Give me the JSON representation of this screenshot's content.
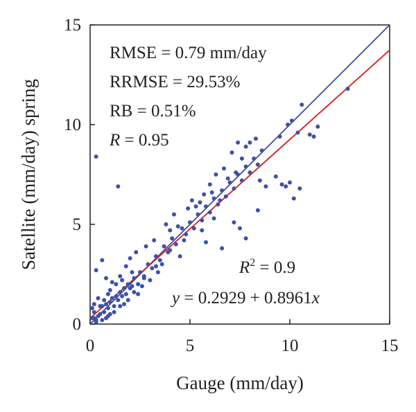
{
  "chart_data": {
    "type": "scatter",
    "xlabel": "Gauge (mm/day)",
    "ylabel": "Satellite (mm/day) spring",
    "xlim": [
      0,
      15
    ],
    "ylim": [
      0,
      15
    ],
    "xticks": [
      "0",
      "5",
      "10",
      "15"
    ],
    "yticks": [
      "0",
      "5",
      "10",
      "15"
    ],
    "stats": {
      "rmse": "RMSE = 0.79 mm/day",
      "rrmse": "RRMSE = 29.53%",
      "rb": "RB = 0.51%",
      "r_var": "R",
      "r_val": " = 0.95",
      "r2_var": "R",
      "r2_sup": "2",
      "r2_val": " = 0.9",
      "eq_y": "y",
      "eq_mid": " = 0.2929 + 0.8961",
      "eq_x": "x"
    },
    "fit_line": {
      "intercept": 0.2929,
      "slope": 0.8961,
      "color": "#d7191c"
    },
    "identity_line": {
      "intercept": 0,
      "slope": 1,
      "color": "#3a4a9f"
    },
    "point_color": "#3f51a6",
    "points": [
      [
        0.3,
        8.4
      ],
      [
        1.4,
        6.9
      ],
      [
        0.3,
        2.7
      ],
      [
        0.6,
        3.2
      ],
      [
        0.8,
        2.3
      ],
      [
        1.0,
        1.7
      ],
      [
        0.4,
        1.3
      ],
      [
        0.1,
        0.8
      ],
      [
        0.2,
        0.6
      ],
      [
        0.1,
        0.3
      ],
      [
        0.3,
        0.2
      ],
      [
        0.5,
        0.5
      ],
      [
        0.6,
        0.9
      ],
      [
        0.2,
        1.0
      ],
      [
        0.7,
        0.6
      ],
      [
        0.8,
        1.0
      ],
      [
        0.9,
        0.8
      ],
      [
        1.0,
        1.1
      ],
      [
        1.1,
        1.3
      ],
      [
        1.2,
        0.9
      ],
      [
        1.3,
        1.4
      ],
      [
        1.4,
        1.2
      ],
      [
        1.5,
        1.6
      ],
      [
        1.6,
        1.4
      ],
      [
        1.7,
        1.8
      ],
      [
        1.8,
        1.5
      ],
      [
        1.9,
        2.0
      ],
      [
        2.0,
        1.8
      ],
      [
        1.3,
        2.0
      ],
      [
        1.5,
        2.4
      ],
      [
        1.1,
        2.1
      ],
      [
        1.6,
        2.2
      ],
      [
        0.9,
        1.5
      ],
      [
        0.7,
        1.2
      ],
      [
        0.5,
        0.9
      ],
      [
        0.4,
        0.4
      ],
      [
        0.2,
        0.3
      ],
      [
        0.6,
        0.2
      ],
      [
        0.9,
        0.4
      ],
      [
        1.2,
        0.6
      ],
      [
        2.1,
        1.9
      ],
      [
        2.2,
        2.3
      ],
      [
        2.4,
        2.0
      ],
      [
        2.5,
        2.6
      ],
      [
        2.7,
        2.4
      ],
      [
        2.9,
        3.0
      ],
      [
        3.1,
        2.8
      ],
      [
        3.3,
        3.4
      ],
      [
        3.5,
        3.2
      ],
      [
        3.7,
        3.9
      ],
      [
        3.9,
        3.6
      ],
      [
        4.1,
        4.3
      ],
      [
        4.3,
        4.0
      ],
      [
        4.6,
        4.8
      ],
      [
        4.8,
        4.5
      ],
      [
        5.0,
        5.1
      ],
      [
        5.2,
        4.8
      ],
      [
        5.4,
        5.5
      ],
      [
        5.6,
        5.2
      ],
      [
        5.8,
        5.9
      ],
      [
        6.0,
        5.6
      ],
      [
        6.2,
        6.3
      ],
      [
        6.4,
        6.0
      ],
      [
        6.6,
        6.7
      ],
      [
        6.8,
        6.4
      ],
      [
        7.0,
        7.1
      ],
      [
        7.2,
        6.8
      ],
      [
        7.4,
        7.5
      ],
      [
        7.6,
        7.2
      ],
      [
        7.8,
        7.9
      ],
      [
        8.0,
        7.6
      ],
      [
        8.2,
        8.3
      ],
      [
        8.4,
        8.0
      ],
      [
        8.6,
        8.7
      ],
      [
        3.8,
        5.0
      ],
      [
        4.2,
        5.5
      ],
      [
        4.4,
        4.9
      ],
      [
        4.0,
        4.7
      ],
      [
        5.5,
        6.1
      ],
      [
        6.0,
        7.0
      ],
      [
        6.3,
        7.5
      ],
      [
        6.7,
        7.8
      ],
      [
        7.1,
        8.6
      ],
      [
        7.4,
        9.1
      ],
      [
        8.0,
        9.1
      ],
      [
        8.3,
        9.3
      ],
      [
        7.6,
        8.3
      ],
      [
        7.8,
        8.9
      ],
      [
        8.5,
        7.2
      ],
      [
        8.8,
        6.9
      ],
      [
        9.3,
        7.4
      ],
      [
        9.6,
        7.0
      ],
      [
        10.0,
        7.1
      ],
      [
        9.8,
        6.9
      ],
      [
        10.2,
        6.3
      ],
      [
        10.5,
        6.8
      ],
      [
        9.5,
        9.4
      ],
      [
        9.9,
        10.0
      ],
      [
        10.1,
        10.2
      ],
      [
        10.4,
        9.6
      ],
      [
        10.6,
        11.0
      ],
      [
        11.0,
        9.5
      ],
      [
        11.4,
        9.9
      ],
      [
        11.2,
        9.4
      ],
      [
        12.9,
        11.8
      ],
      [
        7.2,
        5.1
      ],
      [
        6.6,
        3.8
      ],
      [
        7.8,
        4.3
      ],
      [
        8.4,
        5.7
      ],
      [
        7.5,
        4.8
      ],
      [
        4.5,
        3.4
      ],
      [
        5.8,
        4.1
      ],
      [
        2.8,
        3.9
      ],
      [
        3.2,
        4.2
      ],
      [
        2.0,
        3.3
      ],
      [
        2.3,
        3.6
      ],
      [
        1.8,
        2.9
      ],
      [
        2.6,
        1.9
      ],
      [
        3.0,
        2.2
      ],
      [
        3.4,
        2.6
      ],
      [
        2.2,
        1.6
      ],
      [
        1.9,
        1.2
      ],
      [
        2.4,
        1.5
      ],
      [
        1.7,
        1.0
      ],
      [
        1.0,
        0.5
      ],
      [
        1.5,
        0.9
      ],
      [
        0.8,
        0.3
      ],
      [
        0.3,
        0.1
      ],
      [
        4.9,
        5.8
      ],
      [
        5.1,
        6.2
      ],
      [
        5.3,
        5.9
      ],
      [
        5.7,
        6.5
      ],
      [
        6.1,
        6.6
      ],
      [
        6.5,
        6.2
      ],
      [
        6.9,
        7.3
      ],
      [
        7.3,
        7.6
      ],
      [
        5.6,
        4.7
      ],
      [
        6.2,
        5.3
      ],
      [
        4.7,
        4.2
      ],
      [
        3.6,
        3.0
      ],
      [
        4.0,
        3.7
      ],
      [
        3.3,
        2.9
      ],
      [
        2.7,
        2.3
      ],
      [
        2.1,
        2.6
      ]
    ]
  }
}
